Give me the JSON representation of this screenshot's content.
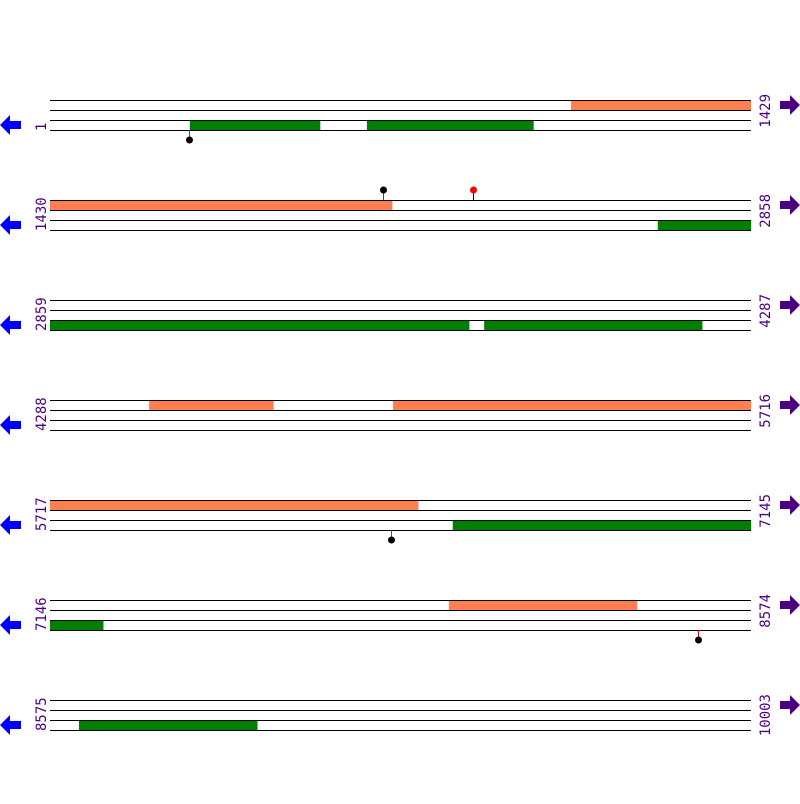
{
  "colors": {
    "forward": "#ff7f50",
    "reverse": "#008000",
    "label": "#4b0082",
    "left_arrow": "#0000ff",
    "right_arrow": "#4b0082",
    "marker": "#000000",
    "marker_alt": "#ff0000",
    "stem": "#ff0000"
  },
  "bp_per_row": 1429,
  "rows": [
    {
      "start": "1",
      "end": "1429",
      "features": [
        {
          "strand": "forward",
          "from": 1063,
          "to": 1429
        },
        {
          "strand": "reverse",
          "from": 286,
          "to": 551
        },
        {
          "strand": "reverse",
          "from": 647,
          "to": 986
        }
      ],
      "markers": [
        {
          "pos": 284,
          "side": "below",
          "color": "black"
        }
      ]
    },
    {
      "start": "1430",
      "end": "2858",
      "features": [
        {
          "strand": "forward",
          "from": 1430,
          "to": 2127
        },
        {
          "strand": "reverse",
          "from": 2669,
          "to": 2858
        }
      ],
      "markers": [
        {
          "pos": 2109,
          "side": "above",
          "color": "black"
        },
        {
          "pos": 2292,
          "side": "above",
          "color": "red"
        }
      ]
    },
    {
      "start": "2859",
      "end": "4287",
      "features": [
        {
          "strand": "reverse",
          "from": 2859,
          "to": 3713
        },
        {
          "strand": "reverse",
          "from": 3744,
          "to": 4188
        }
      ],
      "markers": []
    },
    {
      "start": "4288",
      "end": "5716",
      "features": [
        {
          "strand": "forward",
          "from": 4490,
          "to": 4743
        },
        {
          "strand": "forward",
          "from": 4987,
          "to": 5716
        }
      ],
      "markers": []
    },
    {
      "start": "5717",
      "end": "7145",
      "features": [
        {
          "strand": "forward",
          "from": 5717,
          "to": 6467
        },
        {
          "strand": "reverse",
          "from": 6538,
          "to": 7145
        }
      ],
      "markers": [
        {
          "pos": 6412,
          "side": "below",
          "color": "black"
        }
      ]
    },
    {
      "start": "7146",
      "end": "8574",
      "features": [
        {
          "strand": "forward",
          "from": 7959,
          "to": 8342
        },
        {
          "strand": "reverse",
          "from": 7146,
          "to": 7254
        }
      ],
      "markers": [
        {
          "pos": 8467,
          "side": "below",
          "color": "black"
        }
      ]
    },
    {
      "start": "8575",
      "end": "10003",
      "features": [
        {
          "strand": "reverse",
          "from": 8634,
          "to": 8997
        }
      ],
      "markers": []
    }
  ]
}
